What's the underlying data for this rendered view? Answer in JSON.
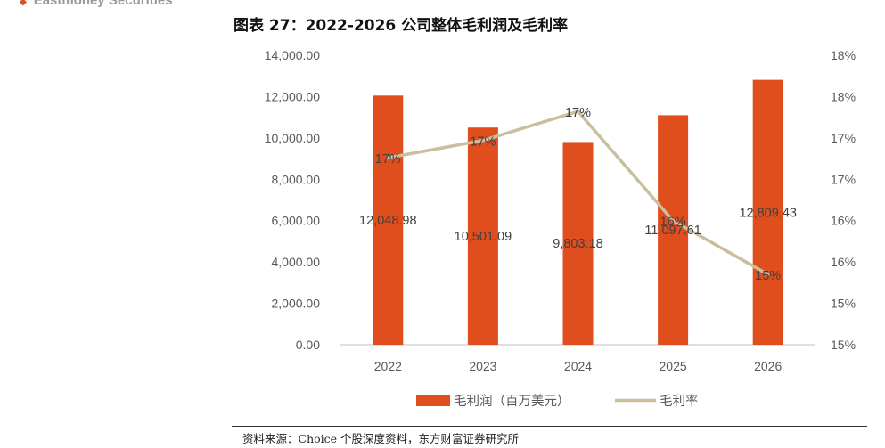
{
  "header": {
    "brand": "Eastmoney Securities",
    "title": "图表 27：2022-2026 公司整体毛利润及毛利率"
  },
  "footer": {
    "source": "资料来源：Choice 个股深度资料，东方财富证券研究所"
  },
  "chart_data": {
    "type": "bar",
    "categories": [
      "2022",
      "2023",
      "2024",
      "2025",
      "2026"
    ],
    "series": [
      {
        "name": "毛利润（百万美元）",
        "type": "bar",
        "axis": "left",
        "color": "#e04e1e",
        "values": [
          12048.98,
          10501.09,
          9803.18,
          11097.61,
          12809.43
        ],
        "labels": [
          "12,048.98",
          "10,501.09",
          "9,803.18",
          "11,097.61",
          "12,809.43"
        ]
      },
      {
        "name": "毛利率",
        "type": "line",
        "axis": "right",
        "color": "#c9bf9c",
        "values": [
          0.1676,
          0.1697,
          0.1732,
          0.16,
          0.1535
        ],
        "labels": [
          "17%",
          "17%",
          "17%",
          "16%",
          "15%"
        ]
      }
    ],
    "y_left": {
      "lim": [
        0,
        14000
      ],
      "ticks": [
        0,
        2000,
        4000,
        6000,
        8000,
        10000,
        12000,
        14000
      ],
      "tick_labels": [
        "0.00",
        "2,000.00",
        "4,000.00",
        "6,000.00",
        "8,000.00",
        "10,000.00",
        "12,000.00",
        "14,000.00"
      ]
    },
    "y_right": {
      "lim": [
        0.145,
        0.18
      ],
      "ticks": [
        0.145,
        0.15,
        0.155,
        0.16,
        0.165,
        0.17,
        0.175,
        0.18
      ],
      "tick_labels": [
        "15%",
        "15%",
        "16%",
        "16%",
        "17%",
        "17%",
        "18%",
        "18%"
      ]
    },
    "grid": false,
    "legend": "bottom",
    "legend_labels": [
      "毛利润（百万美元）",
      "毛利率"
    ]
  }
}
